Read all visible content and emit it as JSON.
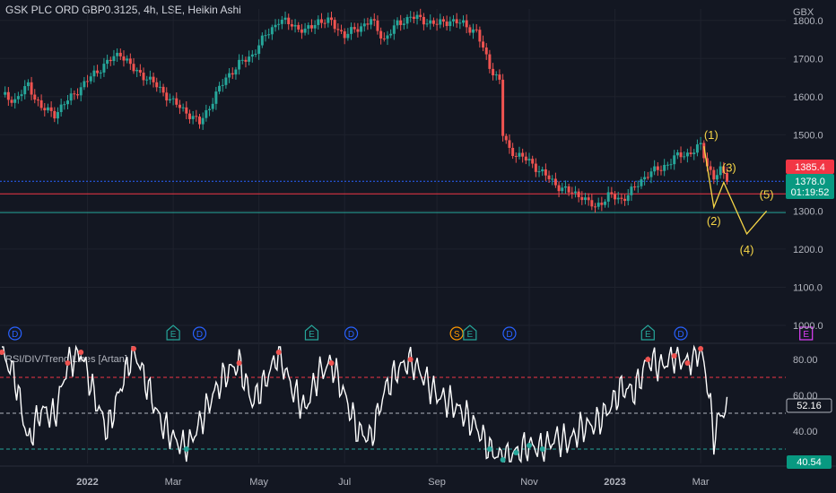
{
  "header": {
    "symbol_title": "GSK PLC ORD GBP0.3125, 4h, LSE, Heikin Ashi",
    "currency": "GBX",
    "indicator_title": "RSI/DIV/Trend Lines [Artan]"
  },
  "colors": {
    "background": "#131722",
    "up": "#26a69a",
    "down": "#ef5350",
    "wave": "#f5d547",
    "rsi_line": "#ffffff",
    "hline_blue": "#2962ff",
    "hline_red": "#f23645",
    "hline_teal": "#26a69a",
    "event_earnings": "#26a69a",
    "event_dividend": "#2962ff",
    "event_split": "#ff9800",
    "event_future_earnings": "#e040fb"
  },
  "chart_data": [
    {
      "type": "candlestick",
      "style": "Heikin Ashi",
      "timeframe": "4h",
      "x_ticks": [
        "2022",
        "Mar",
        "May",
        "Jul",
        "Sep",
        "Nov",
        "2023",
        "Mar"
      ],
      "y_ticks": [
        "1800.0",
        "1700.0",
        "1600.0",
        "1500.0",
        "1300.0",
        "1200.0",
        "1100.0",
        "1000.0"
      ],
      "ylim": [
        960,
        1830
      ],
      "y_unit": "GBX",
      "price_path": [
        [
          0,
          1605
        ],
        [
          2,
          1590
        ],
        [
          4,
          1630
        ],
        [
          6,
          1570
        ],
        [
          8,
          1555
        ],
        [
          10,
          1590
        ],
        [
          12,
          1625
        ],
        [
          14,
          1660
        ],
        [
          16,
          1690
        ],
        [
          18,
          1715
        ],
        [
          20,
          1670
        ],
        [
          22,
          1650
        ],
        [
          24,
          1620
        ],
        [
          26,
          1585
        ],
        [
          28,
          1560
        ],
        [
          30,
          1530
        ],
        [
          32,
          1590
        ],
        [
          34,
          1650
        ],
        [
          36,
          1685
        ],
        [
          38,
          1710
        ],
        [
          40,
          1760
        ],
        [
          42,
          1800
        ],
        [
          44,
          1790
        ],
        [
          46,
          1770
        ],
        [
          48,
          1800
        ],
        [
          50,
          1795
        ],
        [
          52,
          1760
        ],
        [
          54,
          1780
        ],
        [
          56,
          1800
        ],
        [
          58,
          1750
        ],
        [
          60,
          1790
        ],
        [
          62,
          1810
        ],
        [
          64,
          1800
        ],
        [
          66,
          1790
        ],
        [
          68,
          1800
        ],
        [
          70,
          1790
        ],
        [
          72,
          1770
        ],
        [
          74,
          1680
        ],
        [
          75.5,
          1640
        ],
        [
          76,
          1500
        ],
        [
          77,
          1460
        ],
        [
          80,
          1430
        ],
        [
          82,
          1400
        ],
        [
          84,
          1370
        ],
        [
          86,
          1350
        ],
        [
          88,
          1340
        ],
        [
          89,
          1320
        ],
        [
          90,
          1310
        ],
        [
          92,
          1340
        ],
        [
          94,
          1330
        ],
        [
          96,
          1360
        ],
        [
          98,
          1400
        ],
        [
          100,
          1410
        ],
        [
          102,
          1440
        ],
        [
          104,
          1450
        ],
        [
          106,
          1470
        ],
        [
          107,
          1420
        ],
        [
          108,
          1390
        ],
        [
          109,
          1405
        ],
        [
          110,
          1385
        ]
      ],
      "horizontal_lines": [
        {
          "value": 1378.0,
          "color": "#2962ff"
        },
        {
          "value": 1345,
          "color": "#f23645"
        },
        {
          "value": 1296,
          "color": "#26a69a"
        }
      ],
      "price_labels": [
        {
          "text": "1385.4",
          "color": "#f23645"
        },
        {
          "text": "1378.0",
          "sub": "01:19:52",
          "color": "#089981"
        }
      ],
      "wave_labels": [
        "(1)",
        "(2)",
        "(3)",
        "(4)",
        "(5)"
      ],
      "wave_projection": [
        [
          106.5,
          1470
        ],
        [
          108,
          1310
        ],
        [
          109.5,
          1375
        ],
        [
          113,
          1240
        ],
        [
          116,
          1300
        ]
      ],
      "events": [
        {
          "text": "D",
          "kind": "dividend",
          "x": 2
        },
        {
          "text": "E",
          "kind": "earnings",
          "x": 26
        },
        {
          "text": "D",
          "kind": "dividend",
          "x": 30
        },
        {
          "text": "E",
          "kind": "earnings",
          "x": 47
        },
        {
          "text": "D",
          "kind": "dividend",
          "x": 53
        },
        {
          "text": "S",
          "kind": "split",
          "x": 69
        },
        {
          "text": "E",
          "kind": "earnings",
          "x": 71
        },
        {
          "text": "D",
          "kind": "dividend",
          "x": 77
        },
        {
          "text": "E",
          "kind": "earnings",
          "x": 98
        },
        {
          "text": "D",
          "kind": "dividend",
          "x": 103
        },
        {
          "text": "E",
          "kind": "future_earnings",
          "x": 122
        }
      ]
    },
    {
      "type": "line",
      "name": "RSI",
      "y_ticks": [
        "80.00",
        "60.00",
        "40.00"
      ],
      "ylim": [
        22,
        88
      ],
      "levels": [
        {
          "value": 70,
          "color": "#f23645"
        },
        {
          "value": 50,
          "color": "#b2b5be"
        },
        {
          "value": 30,
          "color": "#26a69a"
        }
      ],
      "value_labels": [
        {
          "text": "52.16"
        },
        {
          "text": "40.54"
        }
      ],
      "rsi_path": [
        [
          0,
          84
        ],
        [
          2,
          70
        ],
        [
          4,
          34
        ],
        [
          6,
          52
        ],
        [
          8,
          48
        ],
        [
          10,
          78
        ],
        [
          12,
          84
        ],
        [
          14,
          60
        ],
        [
          16,
          40
        ],
        [
          18,
          64
        ],
        [
          20,
          86
        ],
        [
          22,
          66
        ],
        [
          24,
          46
        ],
        [
          26,
          36
        ],
        [
          28,
          30
        ],
        [
          30,
          44
        ],
        [
          32,
          60
        ],
        [
          34,
          72
        ],
        [
          36,
          78
        ],
        [
          38,
          56
        ],
        [
          40,
          68
        ],
        [
          42,
          84
        ],
        [
          44,
          64
        ],
        [
          46,
          52
        ],
        [
          48,
          72
        ],
        [
          50,
          78
        ],
        [
          52,
          60
        ],
        [
          54,
          40
        ],
        [
          56,
          36
        ],
        [
          58,
          62
        ],
        [
          60,
          74
        ],
        [
          62,
          80
        ],
        [
          64,
          70
        ],
        [
          66,
          60
        ],
        [
          68,
          56
        ],
        [
          70,
          50
        ],
        [
          72,
          42
        ],
        [
          74,
          30
        ],
        [
          76,
          24
        ],
        [
          78,
          28
        ],
        [
          80,
          32
        ],
        [
          82,
          30
        ],
        [
          84,
          36
        ],
        [
          86,
          34
        ],
        [
          88,
          42
        ],
        [
          90,
          44
        ],
        [
          92,
          52
        ],
        [
          94,
          64
        ],
        [
          96,
          62
        ],
        [
          98,
          80
        ],
        [
          100,
          76
        ],
        [
          102,
          82
        ],
        [
          104,
          78
        ],
        [
          106,
          86
        ],
        [
          107,
          68
        ],
        [
          108,
          36
        ],
        [
          109,
          50
        ],
        [
          110,
          52
        ]
      ]
    }
  ]
}
